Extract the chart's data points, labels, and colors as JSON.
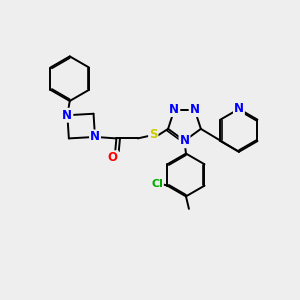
{
  "background_color": "#eeeeee",
  "bond_color": "#000000",
  "bond_width": 1.4,
  "atom_colors": {
    "N": "#0000ff",
    "O": "#ff0000",
    "S": "#cccc00",
    "Cl": "#00aa00",
    "C": "#000000"
  },
  "font_size_atom": 8.5
}
